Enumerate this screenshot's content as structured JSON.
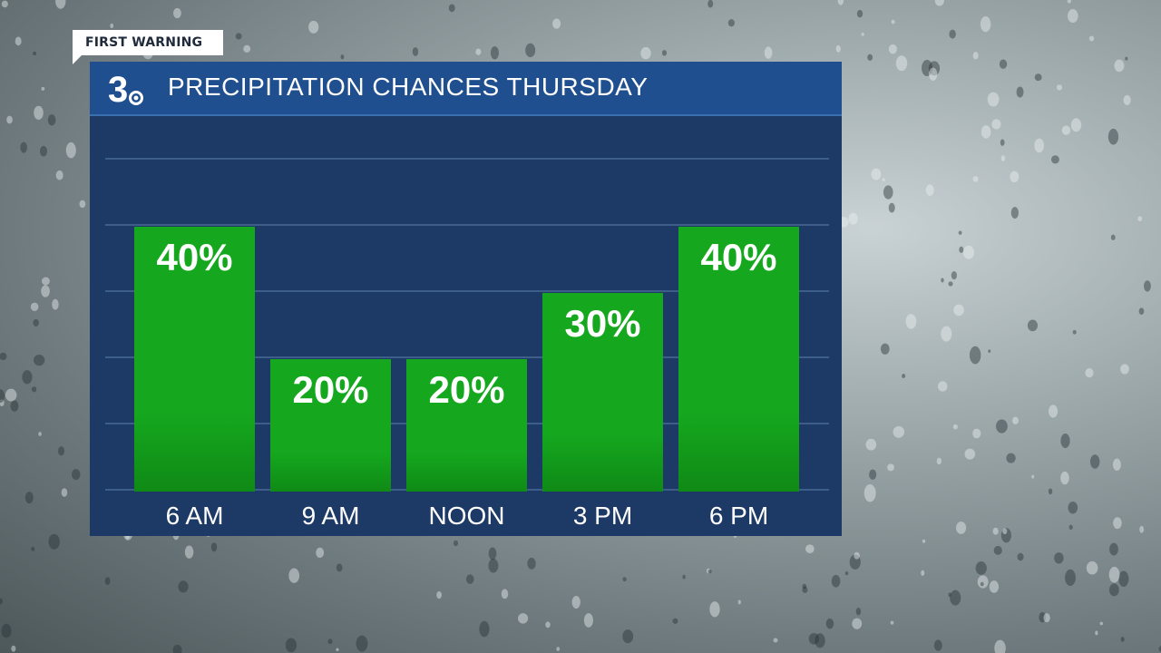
{
  "tag": {
    "label": "FIRST WARNING"
  },
  "header": {
    "logo_text": "3",
    "title": "PRECIPITATION CHANCES THURSDAY"
  },
  "colors": {
    "bar": "#15a81e",
    "bar_dark": "#0f8a16",
    "panel": "#1d3a66",
    "header": "#1f4f8e",
    "grid": "#4a6a96"
  },
  "chart_data": {
    "type": "bar",
    "categories": [
      "6 AM",
      "9 AM",
      "NOON",
      "3 PM",
      "6 PM"
    ],
    "values": [
      40,
      20,
      20,
      30,
      40
    ],
    "value_labels": [
      "40%",
      "20%",
      "20%",
      "30%",
      "40%"
    ],
    "title": "PRECIPITATION CHANCES THURSDAY",
    "xlabel": "",
    "ylabel": "",
    "ylim": [
      0,
      100
    ],
    "grid": true,
    "unit": "%"
  }
}
